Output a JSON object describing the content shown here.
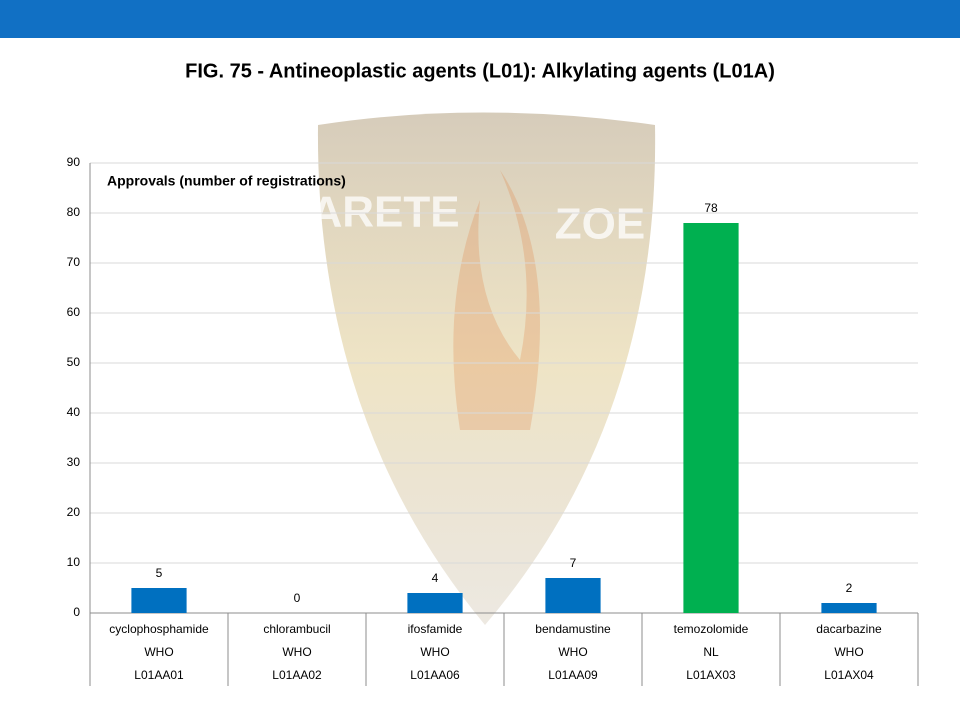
{
  "chart_data": {
    "type": "bar",
    "title": "FIG. 75 - Antineoplastic agents (L01): Alkylating agents (L01A)",
    "annotation": "Approvals (number of registrations)",
    "watermark": [
      "ARETE",
      "ZOE"
    ],
    "categories": [
      "cyclophosphamide",
      "chlorambucil",
      "ifosfamide",
      "bendamustine",
      "temozolomide",
      "dacarbazine"
    ],
    "category_sources": [
      "WHO",
      "WHO",
      "WHO",
      "WHO",
      "NL",
      "WHO"
    ],
    "category_codes": [
      "L01AA01",
      "L01AA02",
      "L01AA06",
      "L01AA09",
      "L01AX03",
      "L01AX04"
    ],
    "values": [
      5,
      0,
      4,
      7,
      78,
      2
    ],
    "colors": [
      "#0070c0",
      "#0070c0",
      "#0070c0",
      "#0070c0",
      "#00b050",
      "#0070c0"
    ],
    "ylim": [
      0,
      90
    ],
    "yticks": [
      0,
      10,
      20,
      30,
      40,
      50,
      60,
      70,
      80,
      90
    ],
    "grid": true
  }
}
